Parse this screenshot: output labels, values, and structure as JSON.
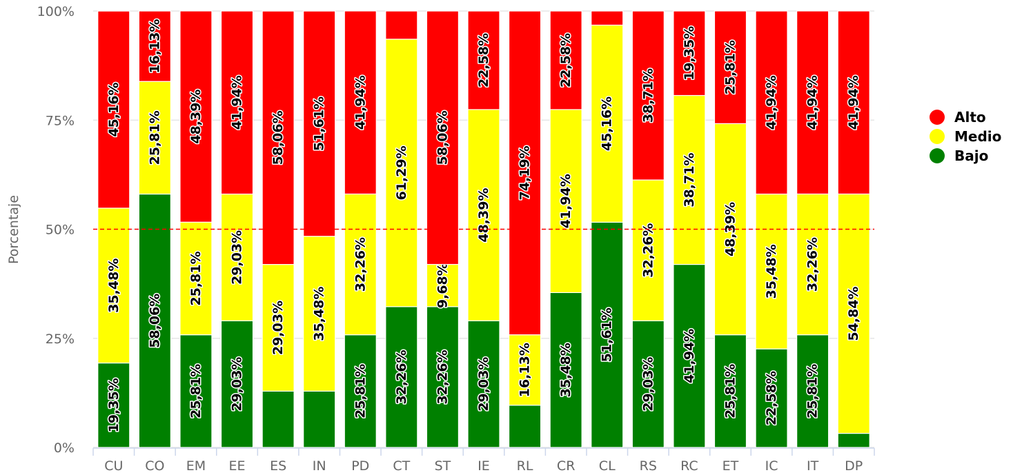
{
  "chart_data": {
    "type": "bar",
    "stacked": true,
    "ylabel": "Porcentaje",
    "ylim": [
      0,
      100
    ],
    "yticks": [
      "0%",
      "25%",
      "50%",
      "75%",
      "100%"
    ],
    "y_tick_values": [
      0,
      25,
      50,
      75,
      100
    ],
    "reference_line": {
      "value": 50,
      "color": "#ff0000",
      "style": "dashed"
    },
    "grid": true,
    "legend": "right",
    "categories": [
      "CU",
      "CO",
      "EM",
      "EE",
      "ES",
      "IN",
      "PD",
      "CT",
      "ST",
      "IE",
      "RL",
      "CR",
      "CL",
      "RS",
      "RC",
      "ET",
      "IC",
      "IT",
      "DP"
    ],
    "series": [
      {
        "name": "Bajo",
        "color": "#008000",
        "values": [
          19.35,
          58.06,
          25.81,
          29.03,
          12.9,
          12.9,
          25.81,
          32.26,
          32.26,
          29.03,
          9.68,
          35.48,
          51.61,
          29.03,
          41.94,
          25.81,
          22.58,
          25.81,
          3.23
        ],
        "labels": [
          "19,35%",
          "58,06%",
          "25,81%",
          "29,03%",
          "",
          "",
          "25,81%",
          "32,26%",
          "32,26%",
          "29,03%",
          "",
          "35,48%",
          "51,61%",
          "29,03%",
          "41,94%",
          "25,81%",
          "22,58%",
          "25,81%",
          ""
        ]
      },
      {
        "name": "Medio",
        "color": "#ffff00",
        "values": [
          35.48,
          25.81,
          25.81,
          29.03,
          29.03,
          35.48,
          32.26,
          61.29,
          9.68,
          48.39,
          16.13,
          41.94,
          45.16,
          32.26,
          38.71,
          48.39,
          35.48,
          32.26,
          54.84
        ],
        "labels": [
          "35,48%",
          "25,81%",
          "25,81%",
          "29,03%",
          "29,03%",
          "35,48%",
          "32,26%",
          "61,29%",
          "9,68%",
          "48,39%",
          "16,13%",
          "41,94%",
          "45,16%",
          "32,26%",
          "38,71%",
          "48,39%",
          "35,48%",
          "32,26%",
          "54,84%"
        ]
      },
      {
        "name": "Alto",
        "color": "#ff0000",
        "values": [
          45.16,
          16.13,
          48.39,
          41.94,
          58.06,
          51.61,
          41.94,
          6.45,
          58.06,
          22.58,
          74.19,
          22.58,
          3.23,
          38.71,
          19.35,
          25.81,
          41.94,
          41.94,
          41.94
        ],
        "labels": [
          "45,16%",
          "16,13%",
          "48,39%",
          "41,94%",
          "58,06%",
          "51,61%",
          "41,94%",
          "",
          "58,06%",
          "22,58%",
          "74,19%",
          "22,58%",
          "",
          "38,71%",
          "19,35%",
          "25,81%",
          "41,94%",
          "41,94%",
          "41,94%"
        ]
      }
    ],
    "legend_order": [
      "Alto",
      "Medio",
      "Bajo"
    ]
  }
}
